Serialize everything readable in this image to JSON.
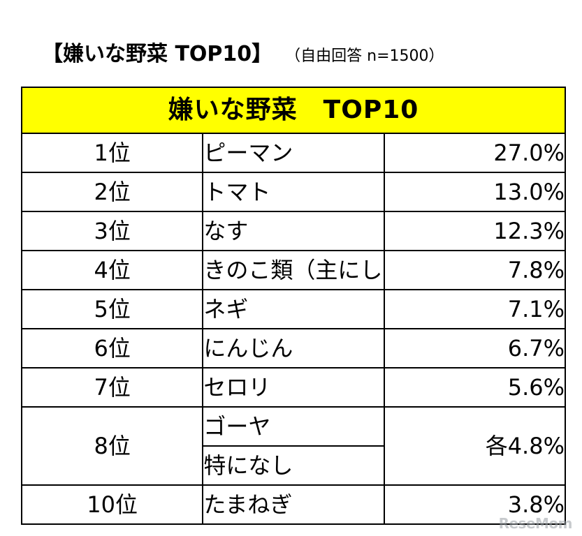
{
  "heading": {
    "main": "【嫌いな野菜 TOP10】",
    "sub": "（自由回答 n=1500）"
  },
  "table": {
    "title": "嫌いな野菜　TOP10",
    "rows": [
      {
        "rank": "1位",
        "item": "ピーマン",
        "percent": "27.0%"
      },
      {
        "rank": "2位",
        "item": "トマト",
        "percent": "13.0%"
      },
      {
        "rank": "3位",
        "item": "なす",
        "percent": "12.3%"
      },
      {
        "rank": "4位",
        "item": "きのこ類（主にしいたけ）",
        "percent": "7.8%"
      },
      {
        "rank": "5位",
        "item": "ネギ",
        "percent": "7.1%"
      },
      {
        "rank": "6位",
        "item": "にんじん",
        "percent": "6.7%"
      },
      {
        "rank": "7位",
        "item": "セロリ",
        "percent": "5.6%"
      }
    ],
    "tied": {
      "rank": "8位",
      "items": [
        "ゴーヤ",
        "特になし"
      ],
      "percent": "各4.8%"
    },
    "last": {
      "rank": "10位",
      "item": "たまねぎ",
      "percent": "3.8%"
    }
  },
  "watermark": "ReseMom",
  "colors": {
    "title_background": "#ffff00",
    "border": "#000000",
    "text": "#000000"
  }
}
